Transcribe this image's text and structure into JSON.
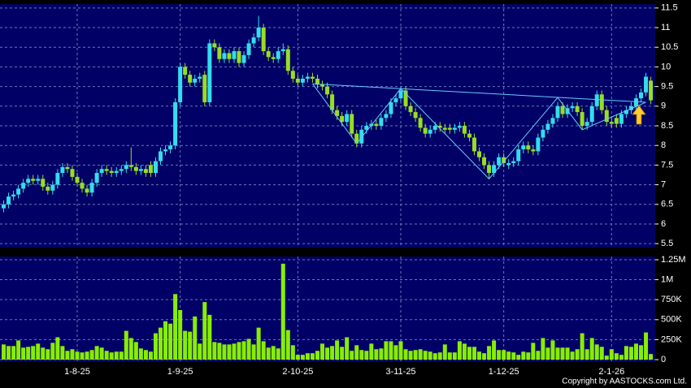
{
  "chart_data": [
    {
      "type": "candlestick",
      "up_color": "#33ddee",
      "down_color": "#99dd22",
      "grid": true,
      "xlim": [
        -0.75,
        132.9
      ],
      "ylim": [
        5.4,
        11.6
      ],
      "yticks": [
        5.5,
        6,
        6.5,
        7,
        7.5,
        8,
        8.5,
        9,
        9.5,
        10,
        10.5,
        11,
        11.5
      ],
      "open": [
        6.4,
        6.5,
        6.7,
        6.75,
        6.9,
        7.05,
        7.15,
        7.1,
        7.15,
        6.95,
        6.85,
        7.0,
        7.3,
        7.45,
        7.4,
        7.2,
        7.05,
        6.9,
        6.8,
        7.05,
        7.3,
        7.4,
        7.35,
        7.3,
        7.35,
        7.4,
        7.5,
        7.45,
        7.35,
        7.4,
        7.5,
        7.3,
        7.6,
        7.85,
        7.9,
        8.0,
        9.1,
        10.0,
        9.8,
        9.6,
        9.7,
        9.8,
        9.1,
        10.6,
        10.5,
        10.2,
        10.35,
        10.2,
        10.4,
        10.1,
        10.3,
        10.6,
        10.75,
        11.0,
        10.4,
        10.25,
        10.2,
        10.4,
        10.45,
        9.9,
        9.7,
        9.6,
        9.7,
        9.75,
        9.7,
        9.55,
        9.5,
        9.3,
        8.9,
        8.75,
        8.6,
        8.8,
        8.3,
        8.05,
        8.4,
        8.5,
        8.55,
        8.5,
        8.7,
        8.8,
        9.1,
        9.2,
        9.4,
        9.0,
        8.85,
        8.7,
        8.45,
        8.3,
        8.4,
        8.5,
        8.45,
        8.45,
        8.4,
        8.45,
        8.5,
        8.3,
        8.2,
        7.85,
        7.7,
        7.5,
        7.3,
        7.5,
        7.7,
        7.5,
        7.55,
        7.6,
        7.9,
        8.0,
        7.9,
        7.85,
        8.2,
        8.4,
        8.55,
        8.7,
        9.0,
        8.8,
        8.95,
        9.0,
        8.85,
        8.5,
        8.6,
        9.0,
        9.3,
        8.9,
        8.6,
        8.7,
        8.55,
        8.8,
        8.9,
        9.0,
        9.2,
        9.35,
        9.65
      ],
      "high": [
        6.6,
        6.8,
        6.85,
        7.0,
        7.15,
        7.25,
        7.25,
        7.25,
        7.25,
        7.05,
        7.1,
        7.4,
        7.55,
        7.55,
        7.5,
        7.3,
        7.15,
        7.0,
        7.15,
        7.4,
        7.5,
        7.5,
        7.45,
        7.45,
        7.5,
        7.6,
        7.95,
        7.55,
        7.5,
        7.5,
        7.6,
        7.7,
        7.95,
        8.0,
        8.1,
        9.2,
        10.1,
        10.1,
        9.9,
        9.8,
        9.85,
        9.9,
        10.7,
        10.7,
        10.6,
        10.45,
        10.45,
        10.5,
        10.5,
        10.4,
        10.7,
        10.85,
        11.3,
        11.1,
        10.5,
        10.35,
        10.5,
        10.6,
        10.55,
        10.0,
        9.8,
        9.8,
        9.85,
        9.85,
        9.8,
        9.65,
        9.6,
        9.4,
        9.0,
        8.85,
        8.9,
        8.9,
        8.4,
        8.5,
        8.6,
        8.65,
        8.65,
        8.8,
        8.9,
        9.2,
        9.3,
        9.5,
        9.5,
        9.1,
        8.95,
        8.8,
        8.55,
        8.5,
        8.6,
        8.6,
        8.55,
        8.55,
        8.55,
        8.6,
        8.6,
        8.4,
        8.3,
        7.95,
        7.8,
        7.6,
        7.6,
        7.8,
        7.8,
        7.65,
        7.7,
        8.0,
        8.1,
        8.1,
        8.0,
        8.3,
        8.5,
        8.65,
        8.8,
        9.1,
        9.1,
        9.05,
        9.1,
        9.1,
        8.95,
        8.7,
        9.1,
        9.4,
        9.4,
        9.0,
        8.7,
        8.8,
        8.9,
        9.0,
        9.1,
        9.3,
        9.45,
        9.85,
        9.75
      ],
      "low": [
        6.3,
        6.4,
        6.6,
        6.65,
        6.8,
        6.95,
        7.0,
        7.0,
        6.85,
        6.75,
        6.75,
        6.9,
        7.2,
        7.3,
        7.1,
        6.95,
        6.8,
        6.7,
        6.7,
        6.95,
        7.2,
        7.25,
        7.2,
        7.2,
        7.25,
        7.3,
        7.35,
        7.25,
        7.25,
        7.2,
        7.2,
        7.2,
        7.5,
        7.75,
        7.8,
        7.9,
        9.0,
        9.7,
        9.5,
        9.5,
        9.6,
        9.0,
        9.0,
        10.4,
        10.1,
        10.1,
        10.1,
        10.1,
        10.0,
        10.0,
        10.2,
        10.5,
        10.65,
        10.3,
        10.15,
        10.1,
        10.1,
        10.3,
        9.8,
        9.6,
        9.5,
        9.5,
        9.6,
        9.6,
        9.45,
        9.4,
        9.2,
        8.8,
        8.65,
        8.5,
        8.5,
        8.2,
        7.95,
        7.95,
        8.3,
        8.4,
        8.4,
        8.4,
        8.6,
        8.7,
        9.0,
        9.1,
        8.9,
        8.75,
        8.6,
        8.35,
        8.2,
        8.2,
        8.3,
        8.35,
        8.3,
        8.3,
        8.3,
        8.35,
        8.2,
        8.1,
        7.75,
        7.6,
        7.4,
        7.15,
        7.2,
        7.4,
        7.45,
        7.4,
        7.45,
        7.5,
        7.8,
        7.8,
        7.75,
        7.75,
        8.1,
        8.3,
        8.45,
        8.6,
        8.7,
        8.7,
        8.85,
        8.75,
        8.4,
        8.4,
        8.5,
        8.9,
        8.8,
        8.5,
        8.45,
        8.45,
        8.45,
        8.7,
        8.8,
        8.9,
        9.1,
        9.25,
        9.05
      ],
      "close": [
        6.5,
        6.7,
        6.75,
        6.9,
        7.05,
        7.15,
        7.1,
        7.15,
        6.95,
        6.85,
        7.0,
        7.3,
        7.45,
        7.4,
        7.2,
        7.05,
        6.9,
        6.8,
        7.05,
        7.3,
        7.4,
        7.35,
        7.3,
        7.35,
        7.4,
        7.5,
        7.45,
        7.35,
        7.4,
        7.3,
        7.3,
        7.6,
        7.85,
        7.9,
        8.0,
        9.1,
        10.0,
        9.8,
        9.6,
        9.7,
        9.75,
        9.1,
        10.6,
        10.5,
        10.2,
        10.35,
        10.2,
        10.4,
        10.1,
        10.3,
        10.6,
        10.75,
        11.0,
        10.4,
        10.25,
        10.2,
        10.4,
        10.45,
        9.9,
        9.7,
        9.6,
        9.7,
        9.75,
        9.7,
        9.55,
        9.5,
        9.3,
        8.9,
        8.75,
        8.6,
        8.8,
        8.3,
        8.05,
        8.4,
        8.5,
        8.55,
        8.5,
        8.7,
        8.8,
        9.1,
        9.2,
        9.4,
        9.0,
        8.85,
        8.7,
        8.45,
        8.3,
        8.4,
        8.5,
        8.45,
        8.4,
        8.4,
        8.45,
        8.5,
        8.3,
        8.2,
        7.85,
        7.7,
        7.5,
        7.3,
        7.5,
        7.7,
        7.55,
        7.55,
        7.6,
        7.9,
        8.0,
        7.9,
        7.85,
        8.2,
        8.4,
        8.55,
        8.7,
        9.0,
        8.8,
        8.95,
        9.0,
        8.85,
        8.5,
        8.6,
        9.0,
        9.3,
        8.9,
        8.6,
        8.55,
        8.55,
        8.8,
        8.9,
        9.0,
        9.2,
        9.35,
        9.75,
        9.15
      ],
      "trendlines": [
        {
          "color": "#66ccff",
          "x": [
            63,
            131
          ],
          "y": [
            9.57,
            9.1
          ]
        },
        {
          "color": "#66ccff",
          "x": [
            63,
            72,
            81,
            99,
            113,
            118,
            131
          ],
          "y": [
            9.57,
            8.05,
            9.45,
            7.15,
            9.22,
            8.4,
            9.1
          ]
        }
      ]
    },
    {
      "type": "bar",
      "color": "#88ee00",
      "grid": true,
      "xlim": [
        -0.75,
        132.9
      ],
      "ylim": [
        -30000,
        1290000
      ],
      "xticks": [
        {
          "value": 15,
          "label": "1-8-25"
        },
        {
          "value": 36,
          "label": "1-9-25"
        },
        {
          "value": 60,
          "label": "2-10-25"
        },
        {
          "value": 81,
          "label": "3-11-25"
        },
        {
          "value": 102,
          "label": "1-12-25"
        },
        {
          "value": 124,
          "label": "2-1-26"
        }
      ],
      "yticks": [
        0,
        {
          "value": 250000,
          "label": "250K"
        },
        {
          "value": 500000,
          "label": "500K"
        },
        {
          "value": 750000,
          "label": "750K"
        },
        {
          "value": 1000000,
          "label": "1M"
        },
        {
          "value": 1250000,
          "label": "1.25M"
        }
      ],
      "values": [
        190000,
        170000,
        170000,
        240000,
        150000,
        160000,
        170000,
        200000,
        150000,
        130000,
        210000,
        280000,
        170000,
        110000,
        130000,
        100000,
        90000,
        100000,
        120000,
        170000,
        150000,
        110000,
        90000,
        100000,
        100000,
        360000,
        270000,
        220000,
        140000,
        120000,
        100000,
        330000,
        400000,
        480000,
        450000,
        820000,
        620000,
        360000,
        350000,
        540000,
        200000,
        720000,
        560000,
        220000,
        210000,
        190000,
        190000,
        200000,
        220000,
        230000,
        260000,
        190000,
        400000,
        230000,
        150000,
        170000,
        140000,
        1200000,
        370000,
        180000,
        60000,
        60000,
        80000,
        80000,
        110000,
        200000,
        150000,
        170000,
        240000,
        160000,
        280000,
        110000,
        180000,
        120000,
        110000,
        200000,
        130000,
        140000,
        230000,
        230000,
        180000,
        230000,
        130000,
        110000,
        120000,
        130000,
        110000,
        100000,
        80000,
        90000,
        190000,
        90000,
        90000,
        230000,
        200000,
        160000,
        160000,
        100000,
        80000,
        170000,
        240000,
        120000,
        120000,
        100000,
        90000,
        60000,
        100000,
        90000,
        210000,
        110000,
        270000,
        150000,
        240000,
        150000,
        150000,
        150000,
        100000,
        130000,
        330000,
        130000,
        270000,
        190000,
        160000,
        50000,
        130000,
        80000,
        60000,
        170000,
        160000,
        200000,
        180000,
        340000,
        70000
      ]
    }
  ],
  "copyright": "Copyright by AASTOCKS.com Ltd."
}
